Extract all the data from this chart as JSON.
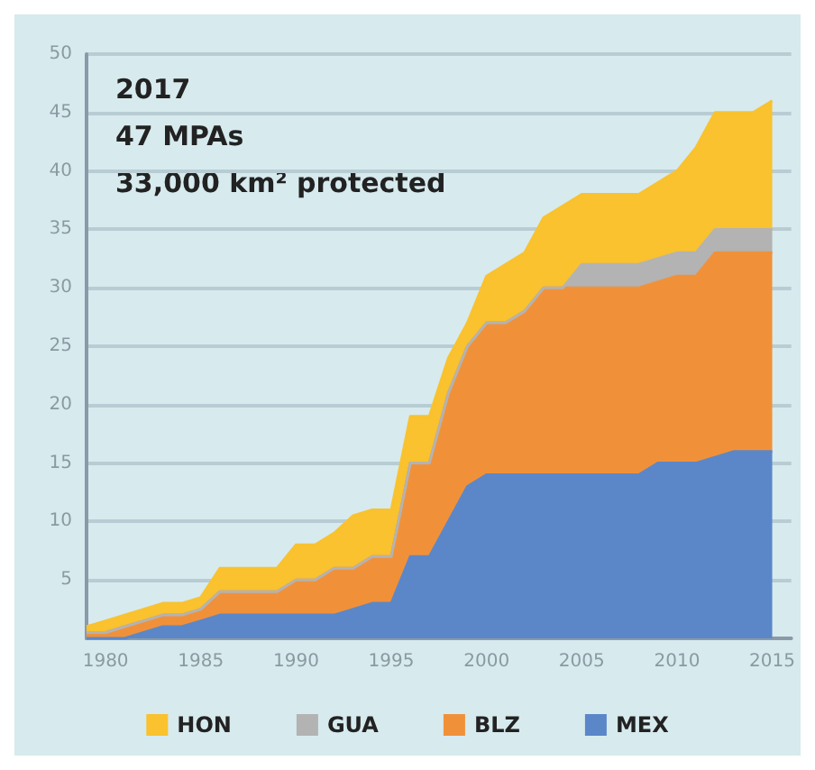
{
  "chart_data": {
    "type": "area",
    "stacked": true,
    "x": [
      1979,
      1980,
      1981,
      1982,
      1983,
      1984,
      1985,
      1986,
      1987,
      1988,
      1989,
      1990,
      1991,
      1992,
      1993,
      1994,
      1995,
      1996,
      1997,
      1998,
      1999,
      2000,
      2001,
      2002,
      2003,
      2004,
      2005,
      2006,
      2007,
      2008,
      2009,
      2010,
      2011,
      2012,
      2013,
      2014,
      2015
    ],
    "series": [
      {
        "name": "MEX",
        "color": "#5b87c9",
        "values": [
          0,
          0,
          0,
          0.5,
          1,
          1,
          1.5,
          2,
          2,
          2,
          2,
          2,
          2,
          2,
          2.5,
          3,
          3,
          7,
          7,
          10,
          13,
          14,
          14,
          14,
          14,
          14,
          14,
          14,
          14,
          14,
          15,
          15,
          15,
          15.5,
          16,
          16,
          16
        ]
      },
      {
        "name": "BLZ",
        "color": "#f0913a",
        "values": [
          0.5,
          0.5,
          1,
          1,
          1,
          1,
          1,
          2,
          2,
          2,
          2,
          3,
          3,
          4,
          3.5,
          4,
          4,
          8,
          8,
          11,
          12,
          13,
          13,
          14,
          16,
          16,
          16,
          16,
          16,
          16,
          15.5,
          16,
          16,
          17.5,
          17,
          17,
          17
        ]
      },
      {
        "name": "GUA",
        "color": "#b3b3b3",
        "values": [
          0,
          0,
          0,
          0,
          0,
          0,
          0,
          0,
          0,
          0,
          0,
          0,
          0,
          0,
          0,
          0,
          0,
          0,
          0,
          0,
          0,
          0,
          0,
          0,
          0,
          0,
          2,
          2,
          2,
          2,
          2,
          2,
          2,
          2,
          2,
          2,
          2
        ]
      },
      {
        "name": "HON",
        "color": "#f9c22e",
        "values": [
          0.5,
          1,
          1,
          1,
          1,
          1,
          1,
          2,
          2,
          2,
          2,
          3,
          3,
          3,
          4.5,
          4,
          4,
          4,
          4,
          3,
          2,
          4,
          5,
          5,
          6,
          7,
          6,
          6,
          6,
          6,
          6.5,
          7,
          9,
          10,
          10,
          10,
          11
        ]
      }
    ],
    "xlim": [
      1979,
      2016
    ],
    "xticks": [
      1980,
      1985,
      1990,
      1995,
      2000,
      2005,
      2010,
      2015
    ],
    "ylim": [
      0,
      50
    ],
    "yticks": [
      5,
      10,
      15,
      20,
      25,
      30,
      35,
      40,
      45,
      50
    ],
    "grid": "y",
    "legend": "bottom",
    "annotations": [
      "2017",
      "47 MPAs",
      "33,000 km² protected"
    ]
  }
}
